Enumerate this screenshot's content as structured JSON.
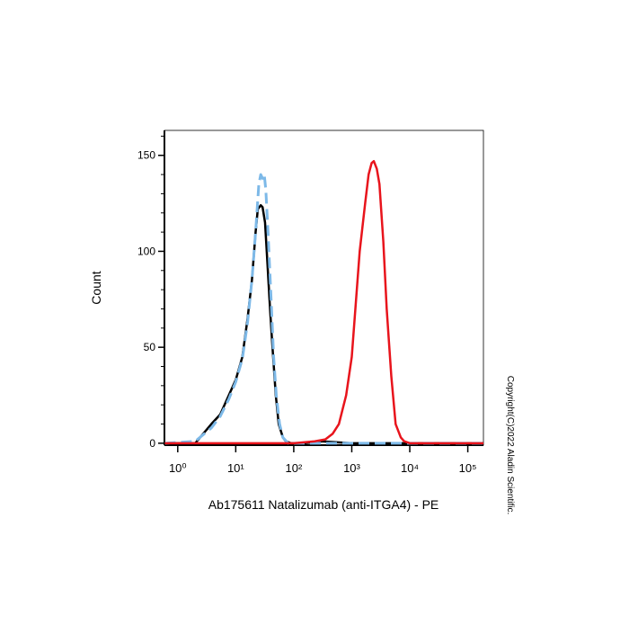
{
  "chart_data": {
    "type": "line",
    "x_label": "Ab175611 Natalizumab (anti-ITGA4) - PE",
    "y_label": "Count",
    "annotation": "Copyright(C)2022 Aladin Scientific.",
    "x_scale": "log",
    "xlim": [
      0.59,
      186000
    ],
    "ylim": [
      -1,
      163
    ],
    "xticks": [
      {
        "value": 1,
        "label": "10⁰"
      },
      {
        "value": 10,
        "label": "10¹"
      },
      {
        "value": 100,
        "label": "10²"
      },
      {
        "value": 1000,
        "label": "10³"
      },
      {
        "value": 10000,
        "label": "10⁴"
      },
      {
        "value": 100000,
        "label": "10⁵"
      }
    ],
    "yticks": [
      0,
      50,
      100,
      150
    ],
    "yminorticks": [
      10,
      20,
      30,
      40,
      60,
      70,
      80,
      90,
      110,
      120,
      130,
      140,
      160
    ],
    "series": [
      {
        "color": "#000000",
        "dashed": false,
        "x": [
          0.6,
          2,
          3.8,
          5.4,
          7.6,
          10,
          13,
          16,
          19,
          22,
          24,
          27,
          29,
          32,
          35,
          39,
          43,
          49,
          55,
          65,
          73,
          90,
          150,
          300,
          1000,
          10000,
          186000
        ],
        "values": [
          0,
          0,
          10,
          15,
          25,
          33,
          45,
          65,
          85,
          110,
          122,
          124,
          123,
          115,
          95,
          70,
          50,
          25,
          10,
          3,
          1,
          0,
          0,
          1,
          0,
          0,
          0
        ]
      },
      {
        "color": "#7db9e8",
        "dashed": true,
        "x": [
          0.6,
          2,
          3.8,
          5.4,
          7.6,
          10,
          13,
          16,
          19,
          22,
          25,
          27,
          29,
          31,
          33,
          36,
          40,
          45,
          50,
          57,
          65,
          80,
          150,
          1000,
          5000,
          186000
        ],
        "values": [
          0,
          1,
          8,
          14,
          23,
          32,
          44,
          63,
          85,
          110,
          135,
          140,
          138,
          140,
          132,
          110,
          80,
          45,
          25,
          10,
          3,
          0,
          0,
          0,
          0,
          0
        ]
      },
      {
        "color": "#e8141c",
        "dashed": false,
        "x": [
          0.6,
          100,
          230,
          350,
          470,
          600,
          800,
          1000,
          1370,
          1700,
          1950,
          2200,
          2400,
          2700,
          3000,
          3500,
          4000,
          4800,
          5700,
          7000,
          8000,
          10000,
          186000
        ],
        "values": [
          0,
          0,
          1,
          2,
          5,
          10,
          25,
          45,
          100,
          125,
          140,
          146,
          147,
          143,
          135,
          105,
          70,
          35,
          10,
          3,
          1,
          0,
          0
        ]
      }
    ]
  }
}
